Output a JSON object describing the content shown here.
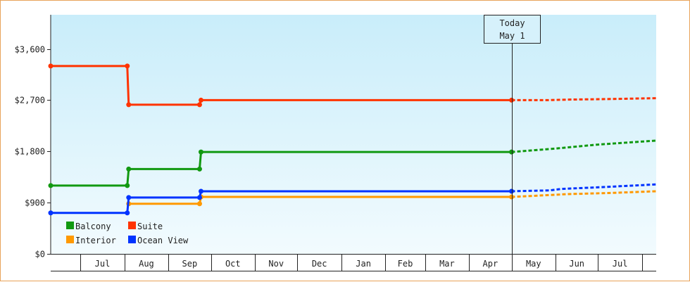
{
  "chart_data": {
    "type": "line",
    "step": true,
    "y_ticks": [
      {
        "value": 0,
        "label": "$0"
      },
      {
        "value": 900,
        "label": "$900"
      },
      {
        "value": 1800,
        "label": "$1,800"
      },
      {
        "value": 2700,
        "label": "$2,700"
      },
      {
        "value": 3600,
        "label": "$3,600"
      }
    ],
    "ylim": [
      0,
      4200
    ],
    "months": [
      "Jul",
      "Aug",
      "Sep",
      "Oct",
      "Nov",
      "Dec",
      "Jan",
      "Feb",
      "Mar",
      "Apr",
      "May",
      "Jun",
      "Jul"
    ],
    "x_start": "2024-06-10",
    "x_end": "2025-08-11",
    "today": {
      "line1": "Today",
      "line2": "May 1",
      "date": "2025-05-01"
    },
    "series": [
      {
        "name": "Suite",
        "color": "#ff3300",
        "points": [
          [
            "2024-06-10",
            3300
          ],
          [
            "2024-08-03",
            3300
          ],
          [
            "2024-08-04",
            2620
          ],
          [
            "2024-09-23",
            2620
          ],
          [
            "2024-09-24",
            2700
          ],
          [
            "2025-05-01",
            2700
          ]
        ],
        "forecast": [
          [
            "2025-05-01",
            2700
          ],
          [
            "2025-05-26",
            2700
          ],
          [
            "2025-06-10",
            2710
          ],
          [
            "2025-07-10",
            2720
          ],
          [
            "2025-08-11",
            2735
          ]
        ]
      },
      {
        "name": "Balcony",
        "color": "#119911",
        "points": [
          [
            "2024-06-10",
            1200
          ],
          [
            "2024-08-03",
            1200
          ],
          [
            "2024-08-04",
            1490
          ],
          [
            "2024-09-23",
            1490
          ],
          [
            "2024-09-24",
            1790
          ],
          [
            "2025-05-01",
            1790
          ]
        ],
        "forecast": [
          [
            "2025-05-01",
            1790
          ],
          [
            "2025-06-01",
            1850
          ],
          [
            "2025-07-01",
            1920
          ],
          [
            "2025-08-11",
            1990
          ]
        ]
      },
      {
        "name": "Ocean View",
        "color": "#0033ff",
        "points": [
          [
            "2024-06-10",
            720
          ],
          [
            "2024-08-03",
            720
          ],
          [
            "2024-08-04",
            990
          ],
          [
            "2024-09-23",
            990
          ],
          [
            "2024-09-24",
            1100
          ],
          [
            "2025-05-01",
            1100
          ]
        ],
        "forecast": [
          [
            "2025-05-01",
            1100
          ],
          [
            "2025-05-28",
            1115
          ],
          [
            "2025-06-05",
            1140
          ],
          [
            "2025-07-10",
            1180
          ],
          [
            "2025-08-11",
            1220
          ]
        ]
      },
      {
        "name": "Interior",
        "color": "#ff9900",
        "points": [
          [
            "2024-08-04",
            880
          ],
          [
            "2024-09-23",
            880
          ],
          [
            "2024-09-24",
            1000
          ],
          [
            "2025-05-01",
            1000
          ]
        ],
        "forecast": [
          [
            "2025-05-01",
            1000
          ],
          [
            "2025-06-10",
            1050
          ],
          [
            "2025-07-10",
            1070
          ],
          [
            "2025-08-11",
            1100
          ]
        ]
      }
    ],
    "legend": [
      {
        "name": "Balcony",
        "color": "#119911"
      },
      {
        "name": "Suite",
        "color": "#ff3300"
      },
      {
        "name": "Interior",
        "color": "#ff9900"
      },
      {
        "name": "Ocean View",
        "color": "#0033ff"
      }
    ],
    "legend_position": "bottom-left",
    "title": "",
    "xlabel": "",
    "ylabel": ""
  }
}
